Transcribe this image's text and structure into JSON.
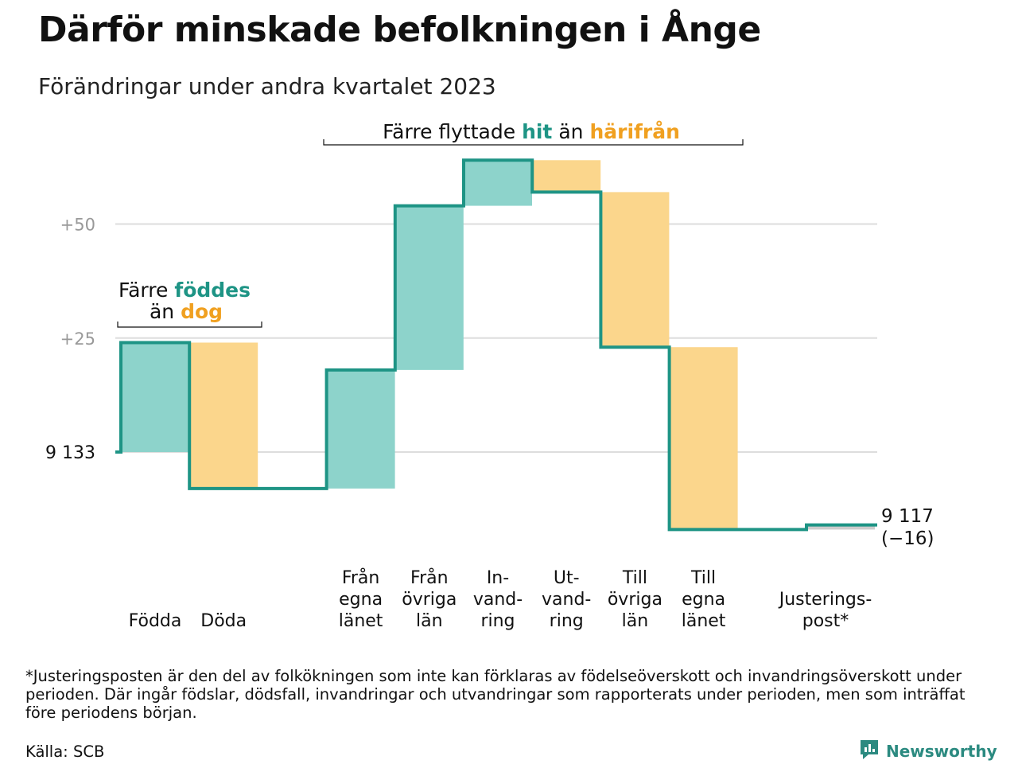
{
  "title": "Därför minskade befolkningen i Ånge",
  "subtitle": "Förändringar under andra kvartalet 2023",
  "colors": {
    "inflow": "#8dd3cb",
    "outflow": "#fbd68c",
    "line": "#1e9485",
    "grid": "#dddddd",
    "tick": "#999999",
    "adjustment": "#cccccc",
    "accent_teal": "#1e9485",
    "accent_orange": "#f0a020"
  },
  "chart_data": {
    "type": "waterfall",
    "start_value": 9133,
    "start_label": "9  133",
    "end_value": 9117,
    "end_label": "9 117",
    "end_change": "(−16)",
    "y_ticks": [
      {
        "value": 50,
        "label": "+50"
      },
      {
        "value": 25,
        "label": "+25"
      },
      {
        "value": 0,
        "label": ""
      }
    ],
    "ylim": [
      -20,
      65
    ],
    "steps": [
      {
        "label": [
          "Födda"
        ],
        "change": 24,
        "kind": "in",
        "slot": 0
      },
      {
        "label": [
          "Döda"
        ],
        "change": -32,
        "kind": "out",
        "slot": 1
      },
      {
        "label": [
          "Från",
          "egna",
          "länet"
        ],
        "change": 26,
        "kind": "in",
        "slot": 3
      },
      {
        "label": [
          "Från",
          "övriga",
          "län"
        ],
        "change": 36,
        "kind": "in",
        "slot": 4
      },
      {
        "label": [
          "In-",
          "vand-",
          "ring"
        ],
        "change": 10,
        "kind": "in",
        "slot": 5
      },
      {
        "label": [
          "Ut-",
          "vand-",
          "ring"
        ],
        "change": -7,
        "kind": "out",
        "slot": 6
      },
      {
        "label": [
          "Till",
          "övriga",
          "län"
        ],
        "change": -34,
        "kind": "out",
        "slot": 7
      },
      {
        "label": [
          "Till",
          "egna",
          "länet"
        ],
        "change": -40,
        "kind": "out",
        "slot": 8
      },
      {
        "label": [
          "Justerings-",
          "post*"
        ],
        "change": 1,
        "kind": "adj",
        "slot": 10
      }
    ],
    "annotations": {
      "births": {
        "prefix": "Färre",
        "word1": "föddes",
        "mid": "än",
        "word2": "dog"
      },
      "migration": {
        "prefix": "Färre flyttade",
        "word1": "hit",
        "mid": "än",
        "word2": "härifrån"
      }
    }
  },
  "footnote": "*Justeringsposten är den del av folkökningen som inte kan förklaras av födelseöverskott och invandringsöverskott under perioden. Där ingår födslar, dödsfall, invandringar och utvandringar som rapporterats under perioden, men som inträffat före periodens början.",
  "source": "Källa: SCB",
  "brand": {
    "name": "Newsworthy",
    "icon": "newsworthy-logo-icon"
  }
}
